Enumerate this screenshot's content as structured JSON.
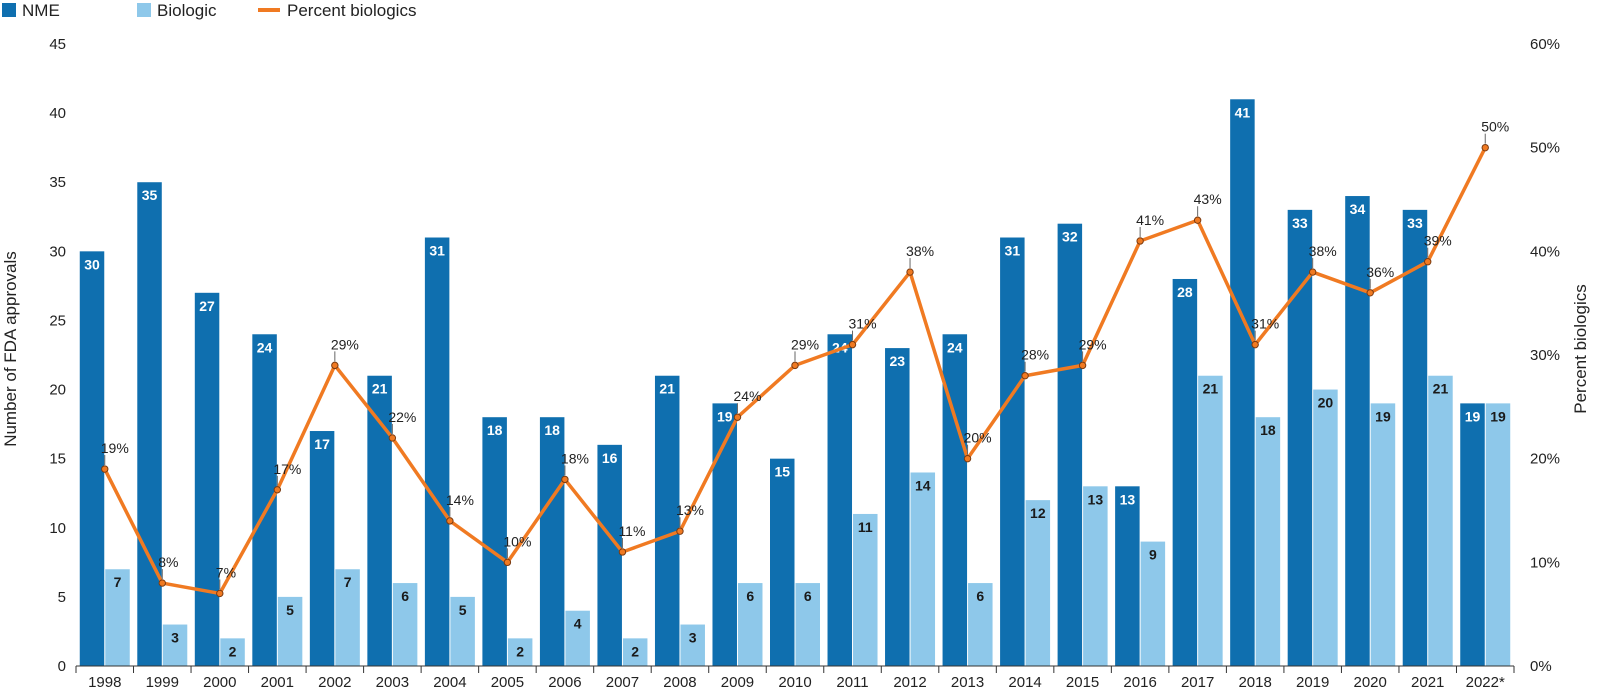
{
  "chart_data": {
    "type": "bar",
    "categories": [
      "1998",
      "1999",
      "2000",
      "2001",
      "2002",
      "2003",
      "2004",
      "2005",
      "2006",
      "2007",
      "2008",
      "2009",
      "2010",
      "2011",
      "2012",
      "2013",
      "2014",
      "2015",
      "2016",
      "2017",
      "2018",
      "2019",
      "2020",
      "2021",
      "2022*"
    ],
    "series": [
      {
        "name": "NME",
        "type": "bar",
        "axis": "left",
        "color": "#0f6faf",
        "label_color": "#ffffff",
        "values": [
          30,
          35,
          27,
          24,
          17,
          21,
          31,
          18,
          18,
          16,
          21,
          19,
          15,
          24,
          23,
          24,
          31,
          32,
          13,
          28,
          41,
          33,
          34,
          33,
          19
        ]
      },
      {
        "name": "Biologic",
        "type": "bar",
        "axis": "left",
        "color": "#8ec8ea",
        "label_color": "#1a1a1a",
        "values": [
          7,
          3,
          2,
          5,
          7,
          6,
          5,
          2,
          4,
          2,
          3,
          6,
          6,
          11,
          14,
          6,
          12,
          13,
          9,
          21,
          18,
          20,
          19,
          21,
          19
        ]
      },
      {
        "name": "Percent biologics",
        "type": "line",
        "axis": "right",
        "color": "#f07a22",
        "values": [
          19,
          8,
          7,
          17,
          29,
          22,
          14,
          10,
          18,
          11,
          13,
          24,
          29,
          31,
          38,
          20,
          28,
          29,
          41,
          43,
          31,
          38,
          36,
          39,
          50
        ],
        "labels": [
          "19%",
          "8%",
          "7%",
          "17%",
          "29%",
          "22%",
          "14%",
          "10%",
          "18%",
          "11%",
          "13%",
          "24%",
          "29%",
          "31%",
          "38%",
          "20%",
          "28%",
          "29%",
          "41%",
          "43%",
          "31%",
          "38%",
          "36%",
          "39%",
          "50%"
        ]
      }
    ],
    "ylabel": "Number of FDA approvals",
    "y2label": "Percent biologics",
    "ylim": [
      0,
      45
    ],
    "y2lim": [
      0,
      60
    ],
    "yticks": [
      "0",
      "5",
      "10",
      "15",
      "20",
      "25",
      "30",
      "35",
      "40",
      "45"
    ],
    "y2ticks": [
      "0%",
      "10%",
      "20%",
      "30%",
      "40%",
      "50%",
      "60%"
    ],
    "legend_position": "top-left",
    "grid": false
  }
}
